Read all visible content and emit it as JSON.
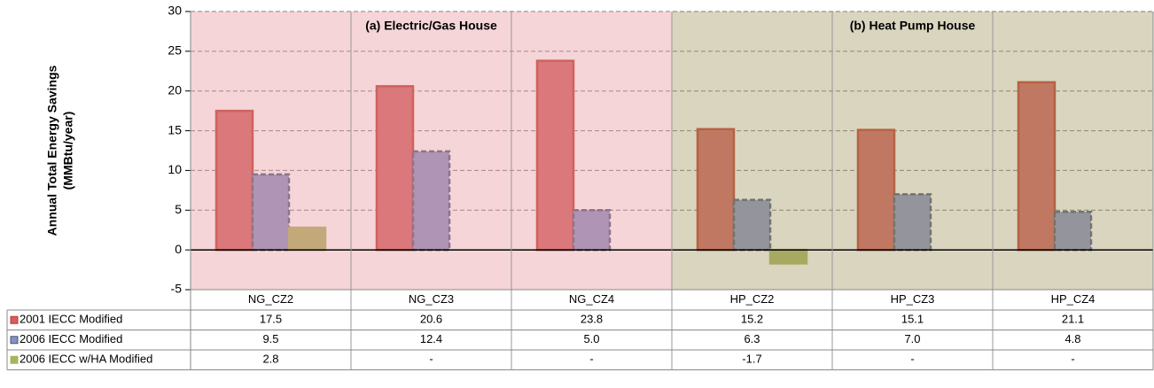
{
  "chart_data": {
    "type": "bar",
    "y_label": [
      "Annual Total Energy Savings",
      "(MMBtu/year)"
    ],
    "panels": [
      {
        "label": "(a) Electric/Gas House",
        "color": "#e79aa1"
      },
      {
        "label": "(b) Heat Pump House",
        "color": "#a89a66"
      }
    ],
    "categories": [
      "NG_CZ2",
      "NG_CZ3",
      "NG_CZ4",
      "HP_CZ2",
      "HP_CZ3",
      "HP_CZ4"
    ],
    "series": [
      {
        "name": "2001 IECC Modified",
        "color": "#d35f5f",
        "edge_color": "#c0392b",
        "dashed": false,
        "values": [
          17.5,
          20.6,
          23.8,
          15.2,
          15.1,
          21.1
        ],
        "value_labels": [
          "17.5",
          "20.6",
          "23.8",
          "15.2",
          "15.1",
          "21.1"
        ]
      },
      {
        "name": "2006 IECC Modified",
        "color": "#8790c4",
        "edge_color": "#4a5878",
        "dashed": true,
        "values": [
          9.5,
          12.4,
          5,
          6.3,
          7,
          4.8
        ],
        "value_labels": [
          "9.5",
          "12.4",
          "5.0",
          "6.3",
          "7.0",
          "4.8"
        ]
      },
      {
        "name": "2006 IECC w/HA Modified",
        "color": "#a9b35e",
        "edge_color": "#a9b35e",
        "dashed": false,
        "values": [
          2.8,
          null,
          null,
          -1.7,
          null,
          null
        ],
        "value_labels": [
          "2.8",
          "-",
          "-",
          "-1.7",
          "-",
          "-"
        ]
      }
    ],
    "ylim": [
      -5,
      30
    ],
    "yticks": [
      -5,
      0,
      5,
      10,
      15,
      20,
      25,
      30
    ],
    "grid": true
  }
}
